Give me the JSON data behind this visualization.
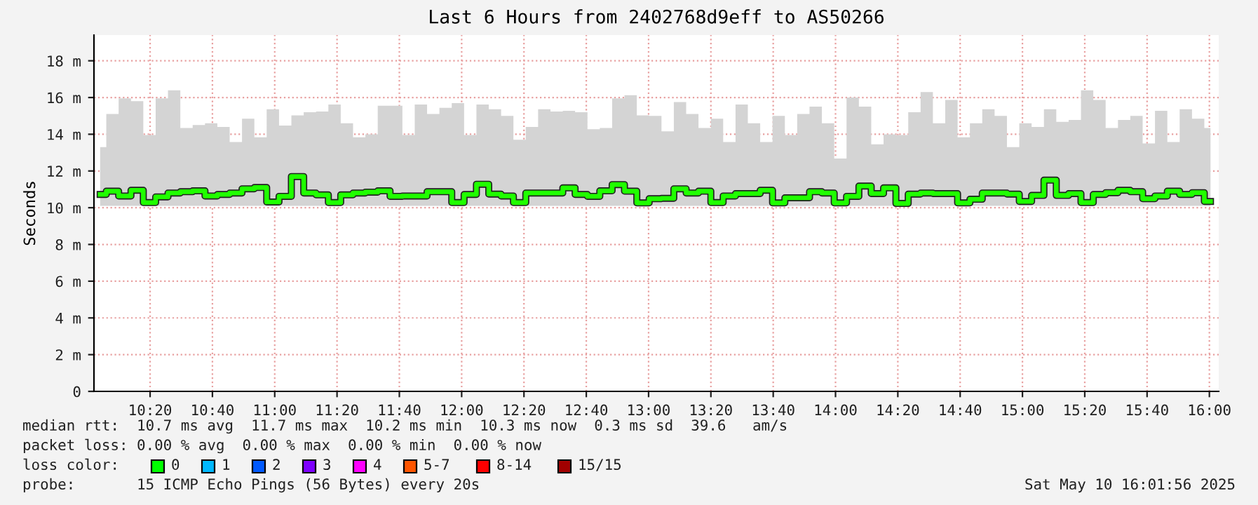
{
  "chart_data": {
    "type": "step",
    "title": "Last 6 Hours from 2402768d9eff to AS50266",
    "ylabel": "Seconds",
    "x": [
      10.066,
      10.132,
      10.198,
      10.264,
      10.33,
      10.396,
      10.462,
      10.528,
      10.594,
      10.66,
      10.726,
      10.792,
      10.858,
      10.924,
      10.99,
      11.056,
      11.122,
      11.188,
      11.254,
      11.32,
      11.386,
      11.452,
      11.518,
      11.584,
      11.65,
      11.716,
      11.782,
      11.848,
      11.914,
      11.98,
      12.046,
      12.112,
      12.178,
      12.244,
      12.31,
      12.376,
      12.442,
      12.508,
      12.574,
      12.64,
      12.706,
      12.772,
      12.838,
      12.904,
      12.97,
      13.036,
      13.102,
      13.168,
      13.234,
      13.3,
      13.366,
      13.432,
      13.498,
      13.564,
      13.63,
      13.696,
      13.762,
      13.828,
      13.894,
      13.96,
      14.026,
      14.092,
      14.158,
      14.224,
      14.29,
      14.356,
      14.422,
      14.488,
      14.554,
      14.62,
      14.686,
      14.752,
      14.818,
      14.884,
      14.95,
      15.016,
      15.082,
      15.148,
      15.214,
      15.28,
      15.346,
      15.412,
      15.478,
      15.544,
      15.61,
      15.676,
      15.742,
      15.808,
      15.874,
      15.94,
      16.006
    ],
    "series": [
      {
        "color": "#20ff00",
        "values": [
          10.72,
          10.9,
          10.64,
          10.95,
          10.28,
          10.59,
          10.8,
          10.87,
          10.92,
          10.64,
          10.72,
          10.8,
          11.03,
          11.1,
          10.31,
          10.62,
          11.7,
          10.8,
          10.7,
          10.28,
          10.7,
          10.8,
          10.85,
          10.92,
          10.62,
          10.64,
          10.64,
          10.87,
          10.87,
          10.28,
          10.72,
          11.28,
          10.74,
          10.64,
          10.28,
          10.8,
          10.8,
          10.8,
          11.08,
          10.72,
          10.62,
          10.92,
          11.26,
          10.9,
          10.26,
          10.49,
          10.51,
          11.03,
          10.8,
          10.9,
          10.28,
          10.64,
          10.77,
          10.77,
          10.95,
          10.26,
          10.54,
          10.54,
          10.87,
          10.8,
          10.26,
          10.62,
          11.18,
          10.77,
          11.08,
          10.23,
          10.74,
          10.8,
          10.77,
          10.77,
          10.26,
          10.46,
          10.8,
          10.8,
          10.74,
          10.34,
          10.67,
          11.5,
          10.67,
          10.77,
          10.28,
          10.72,
          10.82,
          10.95,
          10.87,
          10.49,
          10.64,
          10.9,
          10.72,
          10.82,
          10.34
        ],
        "upper": [
          13.3,
          15.1,
          15.95,
          15.8,
          13.96,
          15.95,
          16.39,
          14.34,
          14.5,
          14.6,
          14.4,
          13.58,
          14.85,
          13.83,
          15.36,
          14.47,
          15.03,
          15.2,
          15.24,
          15.62,
          14.6,
          13.83,
          14.0,
          15.55,
          15.55,
          13.96,
          15.62,
          15.1,
          15.44,
          15.7,
          13.96,
          15.62,
          15.36,
          15.0,
          13.7,
          14.4,
          15.36,
          15.24,
          15.28,
          15.2,
          14.27,
          14.34,
          15.95,
          16.13,
          15.03,
          15.0,
          14.16,
          15.75,
          15.1,
          14.34,
          14.85,
          13.58,
          15.62,
          14.6,
          13.58,
          15.0,
          13.96,
          15.1,
          15.5,
          14.6,
          12.68,
          16.0,
          15.5,
          13.45,
          14.0,
          13.96,
          15.2,
          16.3,
          14.6,
          15.87,
          13.83,
          14.6,
          15.36,
          15.0,
          13.3,
          14.6,
          14.4,
          15.36,
          14.67,
          14.78,
          16.39,
          15.87,
          14.34,
          14.78,
          15.0,
          13.5,
          15.28,
          13.58,
          15.36,
          14.85,
          14.34
        ],
        "lower": [
          10.1,
          10.1,
          10.1,
          10.1,
          10.1,
          10.1,
          10.1,
          10.1,
          10.1,
          10.1,
          10.1,
          10.1,
          10.1,
          10.1,
          10.1,
          10.1,
          10.1,
          10.1,
          10.1,
          10.1,
          10.1,
          10.1,
          10.1,
          10.1,
          10.1,
          10.1,
          10.1,
          10.1,
          10.1,
          10.1,
          10.1,
          10.1,
          10.1,
          10.1,
          10.1,
          10.1,
          10.1,
          10.1,
          10.1,
          10.1,
          10.1,
          10.1,
          10.1,
          10.1,
          10.1,
          10.1,
          10.1,
          10.1,
          10.1,
          10.1,
          10.1,
          10.1,
          10.1,
          10.1,
          10.1,
          10.1,
          10.1,
          10.1,
          10.1,
          10.1,
          10.1,
          10.1,
          10.1,
          10.1,
          10.1,
          10.1,
          10.1,
          10.1,
          10.1,
          10.1,
          10.1,
          10.1,
          10.1,
          10.1,
          10.1,
          10.1,
          10.1,
          10.1,
          10.1,
          10.1,
          10.1,
          10.1,
          10.1,
          10.1,
          10.1,
          10.1,
          10.1,
          10.1,
          10.1,
          10.1,
          10.1
        ]
      }
    ],
    "xlim": [
      10.033,
      16.05
    ],
    "xticks": [
      {
        "value": 10.3333,
        "label": "10:20"
      },
      {
        "value": 10.6667,
        "label": "10:40"
      },
      {
        "value": 11,
        "label": "11:00"
      },
      {
        "value": 11.3333,
        "label": "11:20"
      },
      {
        "value": 11.6667,
        "label": "11:40"
      },
      {
        "value": 12,
        "label": "12:00"
      },
      {
        "value": 12.3333,
        "label": "12:20"
      },
      {
        "value": 12.6667,
        "label": "12:40"
      },
      {
        "value": 13,
        "label": "13:00"
      },
      {
        "value": 13.3333,
        "label": "13:20"
      },
      {
        "value": 13.6667,
        "label": "13:40"
      },
      {
        "value": 14,
        "label": "14:00"
      },
      {
        "value": 14.3333,
        "label": "14:20"
      },
      {
        "value": 14.6667,
        "label": "14:40"
      },
      {
        "value": 15,
        "label": "15:00"
      },
      {
        "value": 15.3333,
        "label": "15:20"
      },
      {
        "value": 15.6667,
        "label": "15:40"
      },
      {
        "value": 16,
        "label": "16:00"
      }
    ],
    "ylim": [
      0,
      19.4
    ],
    "yticks": [
      0,
      {
        "value": 2,
        "label": "2 m"
      },
      {
        "value": 4,
        "label": "4 m"
      },
      {
        "value": 6,
        "label": "6 m"
      },
      {
        "value": 8,
        "label": "8 m"
      },
      {
        "value": 10,
        "label": "10 m"
      },
      {
        "value": 12,
        "label": "12 m"
      },
      {
        "value": 14,
        "label": "14 m"
      },
      {
        "value": 16,
        "label": "16 m"
      },
      {
        "value": 18,
        "label": "18 m"
      }
    ],
    "grid": true,
    "annotations": [
      "median rtt:  10.7 ms avg  11.7 ms max  10.2 ms min  10.3 ms now  0.3 ms sd  39.6   am/s",
      "packet loss: 0.00 % avg  0.00 % max  0.00 % min  0.00 % now",
      "loss color:",
      "0",
      "1",
      "2",
      "3",
      "4",
      "5-7",
      "8-14",
      "15/15",
      "probe:       15 ICMP Echo Pings (56 Bytes) every 20s",
      "Sat May 10 16:01:56 2025"
    ]
  }
}
